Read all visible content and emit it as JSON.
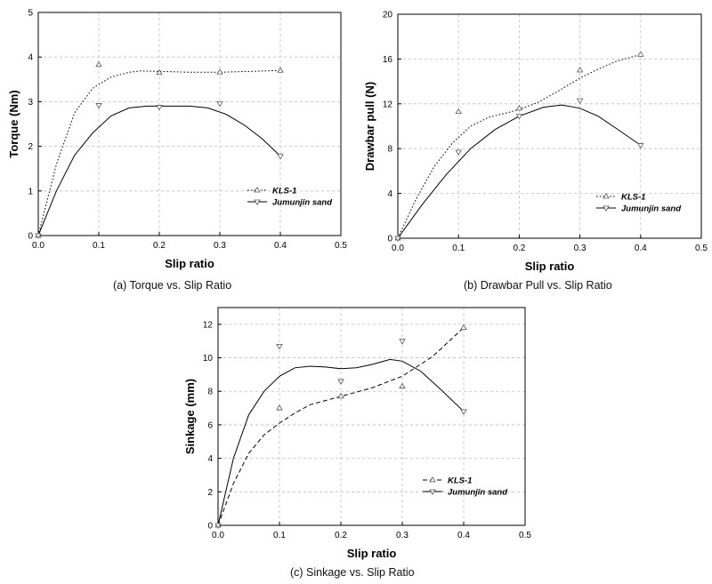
{
  "chart_data": [
    {
      "type": "line",
      "id": "a",
      "caption": "(a) Torque vs. Slip Ratio",
      "xlabel": "Slip ratio",
      "ylabel": "Torque (Nm)",
      "xlim": [
        0.0,
        0.5
      ],
      "ylim": [
        0,
        5
      ],
      "xticks": [
        "0.0",
        "0.1",
        "0.2",
        "0.3",
        "0.4",
        "0.5"
      ],
      "yticks": [
        "0",
        "1",
        "2",
        "3",
        "4",
        "5"
      ],
      "grid": true,
      "legend_position": "lower-right",
      "series": [
        {
          "name": "KLS-1",
          "marker": "triangle-up",
          "line": "dotted",
          "x": [
            0.0,
            0.1,
            0.2,
            0.3,
            0.4
          ],
          "y": [
            0.0,
            3.83,
            3.65,
            3.66,
            3.7
          ],
          "curve": [
            [
              0,
              0
            ],
            [
              0.03,
              1.6
            ],
            [
              0.06,
              2.75
            ],
            [
              0.09,
              3.3
            ],
            [
              0.12,
              3.55
            ],
            [
              0.15,
              3.66
            ],
            [
              0.17,
              3.69
            ],
            [
              0.2,
              3.68
            ],
            [
              0.25,
              3.66
            ],
            [
              0.3,
              3.66
            ],
            [
              0.35,
              3.68
            ],
            [
              0.4,
              3.7
            ]
          ]
        },
        {
          "name": "Jumunjin sand",
          "marker": "triangle-down",
          "line": "solid",
          "x": [
            0.0,
            0.1,
            0.2,
            0.3,
            0.4
          ],
          "y": [
            0.0,
            2.92,
            2.88,
            2.96,
            1.78
          ],
          "curve": [
            [
              0,
              0
            ],
            [
              0.03,
              1.0
            ],
            [
              0.06,
              1.8
            ],
            [
              0.09,
              2.3
            ],
            [
              0.12,
              2.68
            ],
            [
              0.15,
              2.86
            ],
            [
              0.18,
              2.9
            ],
            [
              0.2,
              2.9
            ],
            [
              0.25,
              2.9
            ],
            [
              0.28,
              2.86
            ],
            [
              0.31,
              2.72
            ],
            [
              0.34,
              2.48
            ],
            [
              0.37,
              2.17
            ],
            [
              0.4,
              1.78
            ]
          ]
        }
      ]
    },
    {
      "type": "line",
      "id": "b",
      "caption": "(b) Drawbar Pull vs. Slip Ratio",
      "xlabel": "Slip ratio",
      "ylabel": "Drawbar pull (N)",
      "xlim": [
        0.0,
        0.5
      ],
      "ylim": [
        0,
        20
      ],
      "xticks": [
        "0.0",
        "0.1",
        "0.2",
        "0.3",
        "0.4",
        "0.5"
      ],
      "yticks": [
        "0",
        "4",
        "8",
        "12",
        "16",
        "20"
      ],
      "grid": true,
      "legend_position": "lower-right",
      "series": [
        {
          "name": "KLS-1",
          "marker": "triangle-up",
          "line": "dotted",
          "x": [
            0.0,
            0.1,
            0.2,
            0.3,
            0.4
          ],
          "y": [
            0.0,
            11.3,
            11.6,
            15.0,
            16.4
          ],
          "curve": [
            [
              0,
              0
            ],
            [
              0.03,
              3.5
            ],
            [
              0.06,
              6.4
            ],
            [
              0.09,
              8.5
            ],
            [
              0.12,
              10.0
            ],
            [
              0.15,
              10.8
            ],
            [
              0.18,
              11.2
            ],
            [
              0.2,
              11.5
            ],
            [
              0.23,
              12.1
            ],
            [
              0.26,
              13.0
            ],
            [
              0.3,
              14.3
            ],
            [
              0.33,
              15.1
            ],
            [
              0.36,
              15.8
            ],
            [
              0.4,
              16.4
            ]
          ]
        },
        {
          "name": "Jumunjin sand",
          "marker": "triangle-down",
          "line": "solid",
          "x": [
            0.0,
            0.1,
            0.2,
            0.3,
            0.4
          ],
          "y": [
            0.0,
            7.7,
            10.9,
            12.3,
            8.3
          ],
          "curve": [
            [
              0,
              0
            ],
            [
              0.04,
              3.0
            ],
            [
              0.08,
              5.7
            ],
            [
              0.12,
              8.0
            ],
            [
              0.16,
              9.7
            ],
            [
              0.2,
              10.9
            ],
            [
              0.24,
              11.7
            ],
            [
              0.27,
              11.9
            ],
            [
              0.3,
              11.6
            ],
            [
              0.33,
              10.9
            ],
            [
              0.36,
              9.8
            ],
            [
              0.4,
              8.3
            ]
          ]
        }
      ]
    },
    {
      "type": "line",
      "id": "c",
      "caption": "(c) Sinkage vs. Slip Ratio",
      "xlabel": "Slip ratio",
      "ylabel": "Sinkage (mm)",
      "xlim": [
        0.0,
        0.5
      ],
      "ylim": [
        0,
        13
      ],
      "xticks": [
        "0.0",
        "0.1",
        "0.2",
        "0.3",
        "0.4",
        "0.5"
      ],
      "yticks": [
        "0",
        "2",
        "4",
        "6",
        "8",
        "10",
        "12"
      ],
      "grid": true,
      "legend_position": "lower-right",
      "series": [
        {
          "name": "KLS-1",
          "marker": "triangle-up",
          "line": "dashed",
          "x": [
            0.0,
            0.1,
            0.2,
            0.3,
            0.4
          ],
          "y": [
            0.0,
            7.0,
            7.7,
            8.3,
            11.8
          ],
          "curve": [
            [
              0,
              0
            ],
            [
              0.025,
              2.5
            ],
            [
              0.05,
              4.3
            ],
            [
              0.075,
              5.4
            ],
            [
              0.1,
              6.1
            ],
            [
              0.125,
              6.7
            ],
            [
              0.15,
              7.2
            ],
            [
              0.2,
              7.7
            ],
            [
              0.25,
              8.2
            ],
            [
              0.3,
              8.9
            ],
            [
              0.35,
              10.1
            ],
            [
              0.4,
              11.8
            ]
          ]
        },
        {
          "name": "Jumunjin sand",
          "marker": "triangle-down",
          "line": "solid",
          "x": [
            0.0,
            0.1,
            0.2,
            0.3,
            0.4
          ],
          "y": [
            0.0,
            10.7,
            8.6,
            11.0,
            6.8
          ],
          "curve": [
            [
              0,
              0
            ],
            [
              0.025,
              4.0
            ],
            [
              0.05,
              6.6
            ],
            [
              0.075,
              8.0
            ],
            [
              0.1,
              8.9
            ],
            [
              0.125,
              9.4
            ],
            [
              0.15,
              9.5
            ],
            [
              0.175,
              9.45
            ],
            [
              0.2,
              9.35
            ],
            [
              0.225,
              9.4
            ],
            [
              0.25,
              9.6
            ],
            [
              0.28,
              9.9
            ],
            [
              0.3,
              9.8
            ],
            [
              0.33,
              9.2
            ],
            [
              0.36,
              8.2
            ],
            [
              0.4,
              6.8
            ]
          ]
        }
      ]
    }
  ]
}
